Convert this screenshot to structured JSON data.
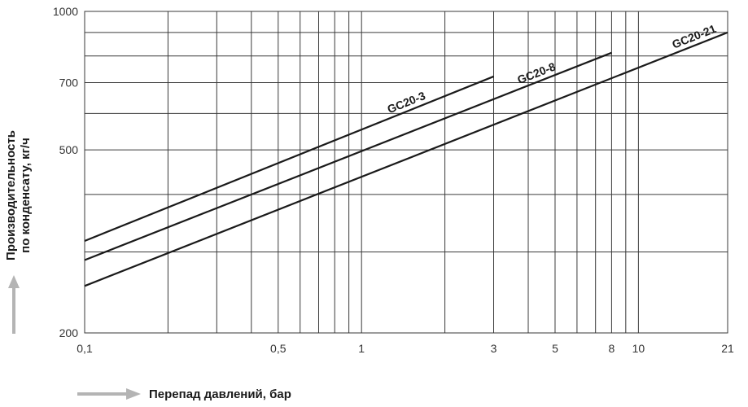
{
  "chart_data": {
    "type": "line",
    "xscale": "log",
    "yscale": "log",
    "xlim": [
      0.1,
      21
    ],
    "ylim": [
      200,
      1000
    ],
    "xticks": [
      0.1,
      0.5,
      1,
      3,
      5,
      8,
      10,
      21
    ],
    "xtick_labels": [
      "0,1",
      "0,5",
      "1",
      "3",
      "5",
      "8",
      "10",
      "21"
    ],
    "yticks": [
      200,
      500,
      700,
      1000
    ],
    "ytick_labels": [
      "200",
      "500",
      "700",
      "1000"
    ],
    "x_gridlines": [
      0.1,
      0.2,
      0.3,
      0.4,
      0.5,
      0.6,
      0.7,
      0.8,
      0.9,
      1,
      2,
      3,
      4,
      5,
      6,
      7,
      8,
      9,
      10,
      21
    ],
    "y_gridlines": [
      200,
      300,
      400,
      500,
      600,
      700,
      800,
      900,
      1000
    ],
    "grid": true,
    "xlabel": "Перепад давлений, бар",
    "ylabel": "Производительность\nпо конденсату, кг/ч",
    "series": [
      {
        "name": "GC20-3",
        "x": [
          0.1,
          3
        ],
        "y": [
          317,
          722
        ]
      },
      {
        "name": "GC20-8",
        "x": [
          0.1,
          8
        ],
        "y": [
          288,
          813
        ]
      },
      {
        "name": "GC20-21",
        "x": [
          0.1,
          21
        ],
        "y": [
          253,
          900
        ]
      }
    ]
  },
  "axis_arrow_color": "#b4b4b4",
  "line_color": "#1a1a1a",
  "grid_color": "#3a3a3a"
}
